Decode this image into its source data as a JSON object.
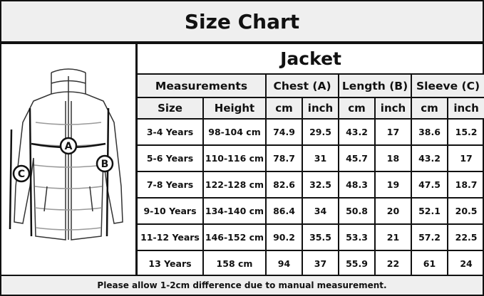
{
  "title": "Size Chart",
  "product": "Jacket",
  "diagram_labels": {
    "chest": "A",
    "length": "B",
    "sleeve": "C"
  },
  "headers": {
    "measurements": "Measurements",
    "chest": "Chest (A)",
    "length": "Length (B)",
    "sleeve": "Sleeve (C)"
  },
  "subheaders": [
    "Size",
    "Height",
    "cm",
    "inch",
    "cm",
    "inch",
    "cm",
    "inch"
  ],
  "rows": [
    [
      "3-4 Years",
      "98-104 cm",
      "74.9",
      "29.5",
      "43.2",
      "17",
      "38.6",
      "15.2"
    ],
    [
      "5-6 Years",
      "110-116 cm",
      "78.7",
      "31",
      "45.7",
      "18",
      "43.2",
      "17"
    ],
    [
      "7-8 Years",
      "122-128 cm",
      "82.6",
      "32.5",
      "48.3",
      "19",
      "47.5",
      "18.7"
    ],
    [
      "9-10 Years",
      "134-140 cm",
      "86.4",
      "34",
      "50.8",
      "20",
      "52.1",
      "20.5"
    ],
    [
      "11-12 Years",
      "146-152 cm",
      "90.2",
      "35.5",
      "53.3",
      "21",
      "57.2",
      "22.5"
    ],
    [
      "13 Years",
      "158 cm",
      "94",
      "37",
      "55.9",
      "22",
      "61",
      "24"
    ]
  ],
  "footer": "Please allow 1-2cm difference due to manual measurement."
}
